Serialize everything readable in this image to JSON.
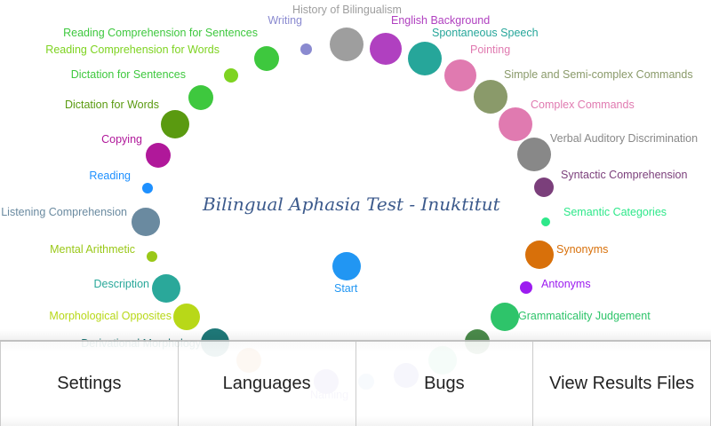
{
  "app": {
    "title": "Bilingual Aphasia Test - Inuktitut"
  },
  "start": {
    "label": "Start",
    "color": "#2196f3"
  },
  "tests": [
    {
      "id": "history-of-bilingualism",
      "label": "History of Bilingualism",
      "color": "#9e9e9e"
    },
    {
      "id": "english-background",
      "label": "English Background",
      "color": "#b040c0"
    },
    {
      "id": "spontaneous-speech",
      "label": "Spontaneous Speech",
      "color": "#26a69a"
    },
    {
      "id": "pointing",
      "label": "Pointing",
      "color": "#e07ab0"
    },
    {
      "id": "simple-commands",
      "label": "Simple and Semi-complex Commands",
      "color": "#8a9a6a"
    },
    {
      "id": "complex-commands",
      "label": "Complex Commands",
      "color": "#e07ab0"
    },
    {
      "id": "verbal-auditory-discrimination",
      "label": "Verbal Auditory Discrimination",
      "color": "#888888"
    },
    {
      "id": "syntactic-comprehension",
      "label": "Syntactic Comprehension",
      "color": "#7b3f7b"
    },
    {
      "id": "semantic-categories",
      "label": "Semantic Categories",
      "color": "#2ee88a"
    },
    {
      "id": "synonyms",
      "label": "Synonyms",
      "color": "#d8700a"
    },
    {
      "id": "antonyms",
      "label": "Antonyms",
      "color": "#9c1cf0"
    },
    {
      "id": "grammaticality-judgement",
      "label": "Grammaticality Judgement",
      "color": "#2ec46a"
    },
    {
      "id": "writing",
      "label": "Writing",
      "color": "#8a8ad0"
    },
    {
      "id": "reading-comprehension-sentences",
      "label": "Reading Comprehension for Sentences",
      "color": "#3ec83e"
    },
    {
      "id": "reading-comprehension-words",
      "label": "Reading Comprehension for Words",
      "color": "#7ed321"
    },
    {
      "id": "dictation-sentences",
      "label": "Dictation for Sentences",
      "color": "#3ec83e"
    },
    {
      "id": "dictation-words",
      "label": "Dictation for Words",
      "color": "#5a9a10"
    },
    {
      "id": "copying",
      "label": "Copying",
      "color": "#b0189a"
    },
    {
      "id": "reading",
      "label": "Reading",
      "color": "#1e90ff"
    },
    {
      "id": "listening-comprehension",
      "label": "Listening Comprehension",
      "color": "#6a8aa0"
    },
    {
      "id": "mental-arithmetic",
      "label": "Mental Arithmetic",
      "color": "#9ac818"
    },
    {
      "id": "description",
      "label": "Description",
      "color": "#2aa89a"
    },
    {
      "id": "morphological-opposites",
      "label": "Morphological Opposites",
      "color": "#b8d818"
    },
    {
      "id": "derivational-morphology",
      "label": "Derivational Morphology",
      "color": "#1e7878"
    },
    {
      "id": "hidden-a",
      "label": "",
      "color": "#e8a060"
    },
    {
      "id": "naming",
      "label": "Naming",
      "color": "#9a8ad8"
    },
    {
      "id": "hidden-b",
      "label": "",
      "color": "#9ab8e8"
    },
    {
      "id": "hidden-c",
      "label": "",
      "color": "#8a8ad8"
    },
    {
      "id": "hidden-d",
      "label": "",
      "color": "#7ee0b0"
    },
    {
      "id": "hidden-e",
      "label": "",
      "color": "#4a8a4a"
    }
  ],
  "menu": {
    "items": [
      "Settings",
      "Languages",
      "Bugs",
      "View Results Files"
    ]
  }
}
